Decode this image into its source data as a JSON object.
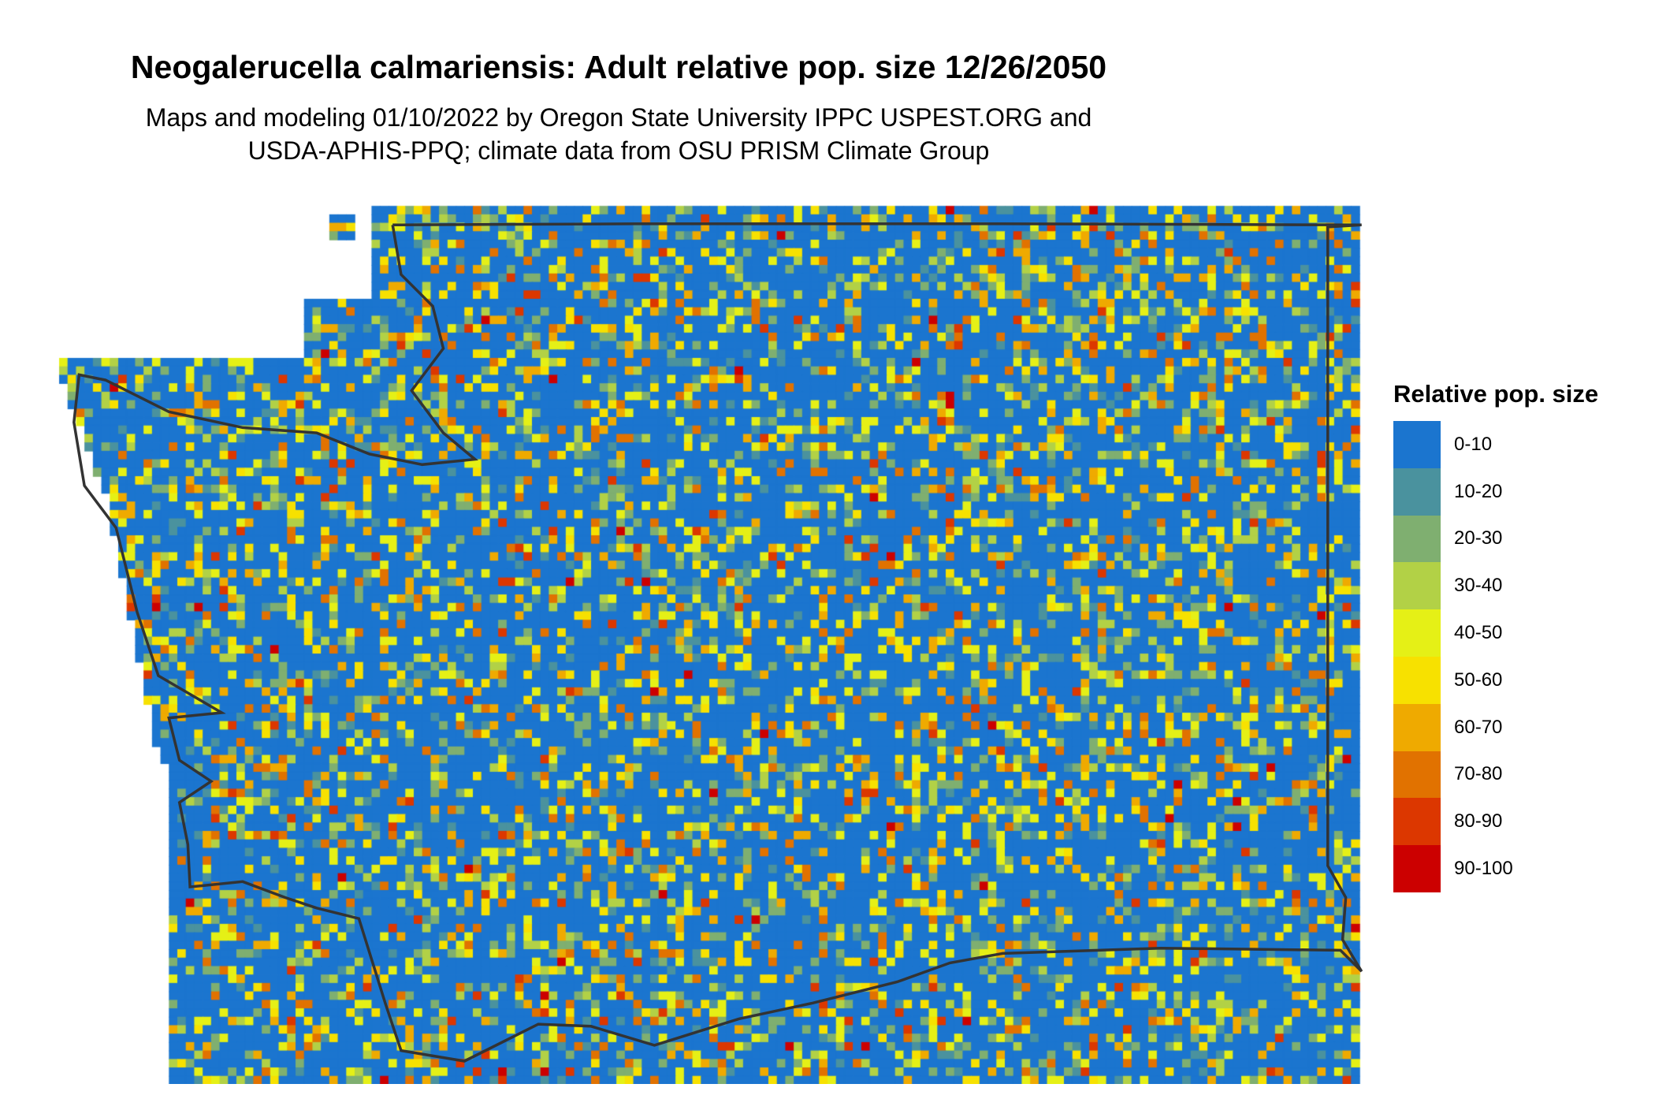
{
  "title": "Neogalerucella calmariensis: Adult relative pop. size 12/26/2050",
  "subtitle_line1": "Maps and modeling 01/10/2022 by Oregon State University IPPC USPEST.ORG and",
  "subtitle_line2": "USDA-APHIS-PPQ; climate data from OSU PRISM Climate Group",
  "legend": {
    "title": "Relative pop. size",
    "items": [
      {
        "label": "0-10",
        "color": "#1B75CF"
      },
      {
        "label": "10-20",
        "color": "#4A929E"
      },
      {
        "label": "20-30",
        "color": "#7FAF70"
      },
      {
        "label": "30-40",
        "color": "#B2D146"
      },
      {
        "label": "40-50",
        "color": "#E5F016"
      },
      {
        "label": "50-60",
        "color": "#F7E100"
      },
      {
        "label": "60-70",
        "color": "#EFAA00"
      },
      {
        "label": "70-80",
        "color": "#E17200"
      },
      {
        "label": "80-90",
        "color": "#DC3700"
      },
      {
        "label": "90-100",
        "color": "#CC0000"
      }
    ]
  },
  "boundary_color": "#333333"
}
